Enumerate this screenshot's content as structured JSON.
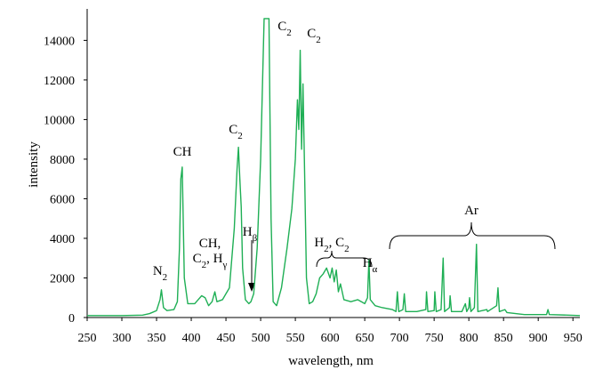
{
  "chart_data": {
    "type": "line",
    "xlabel": "wavelength, nm",
    "ylabel": "intensity",
    "color": "#1faf55",
    "x": [
      250,
      300,
      330,
      340,
      350,
      355,
      357,
      360,
      365,
      375,
      380,
      383,
      385,
      387,
      390,
      395,
      405,
      410,
      415,
      420,
      425,
      430,
      434,
      437,
      445,
      455,
      462,
      466,
      468,
      470,
      472,
      474,
      478,
      483,
      486,
      490,
      495,
      500,
      505,
      512,
      515,
      518,
      523,
      530,
      538,
      545,
      550,
      553,
      555,
      557,
      559,
      561,
      563,
      566,
      570,
      575,
      580,
      585,
      590,
      595,
      600,
      603,
      606,
      609,
      612,
      615,
      620,
      630,
      640,
      650,
      654,
      656,
      658,
      665,
      675,
      690,
      695,
      697,
      699,
      705,
      707,
      709,
      725,
      738,
      739,
      741,
      750,
      751,
      753,
      760,
      763,
      765,
      772,
      773,
      775,
      790,
      795,
      797,
      800,
      801,
      803,
      808,
      811,
      813,
      826,
      827,
      840,
      842,
      844,
      852,
      855,
      880,
      912,
      914,
      916,
      960
    ],
    "values": [
      100,
      100,
      120,
      200,
      350,
      900,
      1400,
      500,
      350,
      400,
      800,
      3500,
      7000,
      7600,
      2000,
      700,
      700,
      900,
      1100,
      1000,
      600,
      800,
      1300,
      800,
      900,
      1500,
      4500,
      7500,
      8600,
      7000,
      5600,
      2500,
      900,
      700,
      800,
      1200,
      3500,
      8000,
      15100,
      15100,
      5000,
      800,
      600,
      1500,
      3500,
      5500,
      8000,
      11000,
      9500,
      13500,
      8500,
      11800,
      8000,
      2000,
      700,
      800,
      1200,
      2000,
      2200,
      2500,
      2000,
      2500,
      1800,
      2400,
      1300,
      1700,
      900,
      800,
      900,
      700,
      1000,
      2900,
      900,
      600,
      500,
      400,
      300,
      1300,
      300,
      400,
      1200,
      300,
      300,
      400,
      1300,
      300,
      350,
      1300,
      300,
      400,
      3000,
      300,
      500,
      1100,
      300,
      300,
      700,
      300,
      500,
      1000,
      300,
      500,
      3700,
      300,
      400,
      300,
      600,
      1500,
      300,
      400,
      250,
      150,
      150,
      400,
      150,
      100
    ],
    "xlim": [
      250,
      960
    ],
    "xticks": [
      250,
      300,
      350,
      400,
      450,
      500,
      550,
      600,
      650,
      700,
      750,
      800,
      850,
      900,
      950
    ],
    "ylim": [
      0,
      15500
    ],
    "yticks": [
      0,
      2000,
      4000,
      6000,
      8000,
      10000,
      12000,
      14000
    ],
    "grid": false,
    "annotations": [
      {
        "lines": [
          [
            {
              "t": "N"
            },
            {
              "s": "2"
            }
          ]
        ]
      },
      {
        "lines": [
          [
            {
              "t": "CH"
            }
          ]
        ]
      },
      {
        "lines": [
          [
            {
              "t": "CH,"
            }
          ],
          [
            {
              "t": "C"
            },
            {
              "s": "2"
            },
            {
              "t": ", H"
            },
            {
              "s": "γ"
            }
          ]
        ]
      },
      {
        "lines": [
          [
            {
              "t": "C"
            },
            {
              "s": "2"
            }
          ]
        ]
      },
      {
        "lines": [
          [
            {
              "t": "H"
            },
            {
              "s": "β"
            }
          ]
        ]
      },
      {
        "lines": [
          [
            {
              "t": "C"
            },
            {
              "s": "2"
            }
          ]
        ]
      },
      {
        "lines": [
          [
            {
              "t": "C"
            },
            {
              "s": "2"
            }
          ]
        ]
      },
      {
        "lines": [
          [
            {
              "t": "H"
            },
            {
              "s": "2"
            },
            {
              "t": ", C"
            },
            {
              "s": "2"
            }
          ]
        ]
      },
      {
        "lines": [
          [
            {
              "t": "H"
            },
            {
              "s": "α"
            }
          ]
        ]
      },
      {
        "lines": [
          [
            {
              "t": "Ar"
            }
          ]
        ]
      }
    ]
  }
}
